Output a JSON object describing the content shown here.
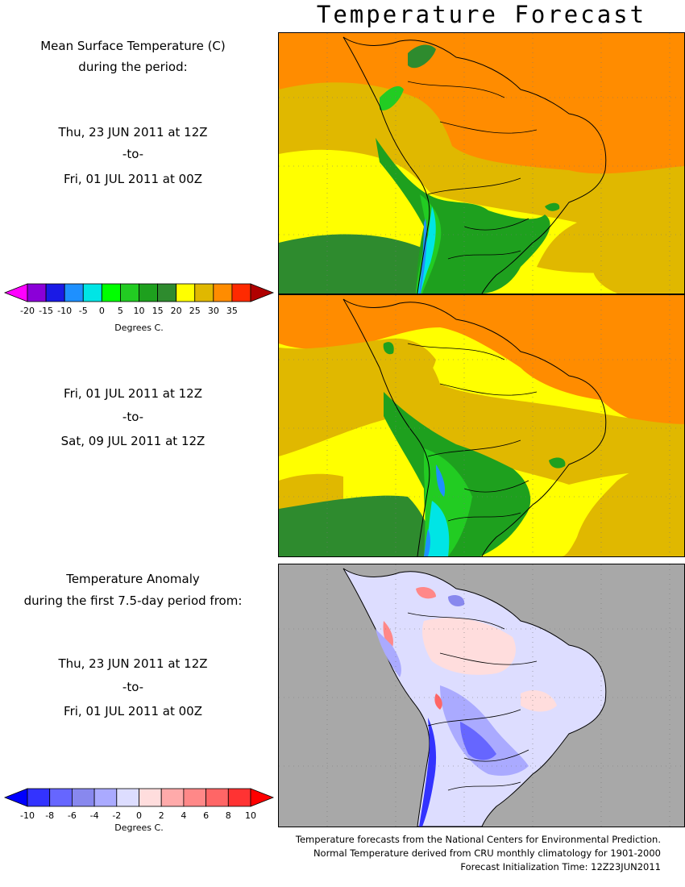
{
  "title": "Temperature Forecast",
  "panel1": {
    "heading_line1": "Mean Surface Temperature (C)",
    "heading_line2": "during the period:",
    "start": "Thu, 23 JUN 2011 at 12Z",
    "to": "-to-",
    "end": "Fri, 01 JUL 2011 at 00Z"
  },
  "panel2": {
    "start": "Fri, 01 JUL 2011 at 12Z",
    "to": "-to-",
    "end": "Sat, 09 JUL 2011 at 12Z"
  },
  "panel3": {
    "heading_line1": "Temperature Anomaly",
    "heading_line2": "during the first 7.5-day period from:",
    "start": "Thu, 23 JUN 2011 at 12Z",
    "to": "-to-",
    "end": "Fri, 01 JUL 2011 at 00Z"
  },
  "temp_colorbar": {
    "unit": "Degrees C.",
    "ticks": [
      "-20",
      "-15",
      "-10",
      "-5",
      "0",
      "5",
      "10",
      "15",
      "20",
      "25",
      "30",
      "35"
    ],
    "colors": [
      "#ff00ff",
      "#8b00d8",
      "#1a1ae6",
      "#1e90ff",
      "#00e5e5",
      "#00ff00",
      "#22cc22",
      "#1ea01e",
      "#2e8b2e",
      "#ffff00",
      "#e0b800",
      "#ff8c00",
      "#ff2a00",
      "#b00000"
    ]
  },
  "anomaly_colorbar": {
    "unit": "Degrees C.",
    "ticks": [
      "-10",
      "-8",
      "-6",
      "-4",
      "-2",
      "0",
      "2",
      "4",
      "6",
      "8",
      "10"
    ],
    "colors": [
      "#0000ff",
      "#3333ff",
      "#6666ff",
      "#8888ee",
      "#aaaaff",
      "#ddddff",
      "#ffdddd",
      "#ffaaaa",
      "#ff8888",
      "#ff6666",
      "#ff3333",
      "#ff0000"
    ]
  },
  "footer": {
    "line1": "Temperature forecasts from the National Centers for Environmental Prediction.",
    "line2": "Normal Temperature derived from CRU monthly climatology for 1901-2000",
    "line3": "Forecast Initialization Time: 12Z23JUN2011"
  }
}
